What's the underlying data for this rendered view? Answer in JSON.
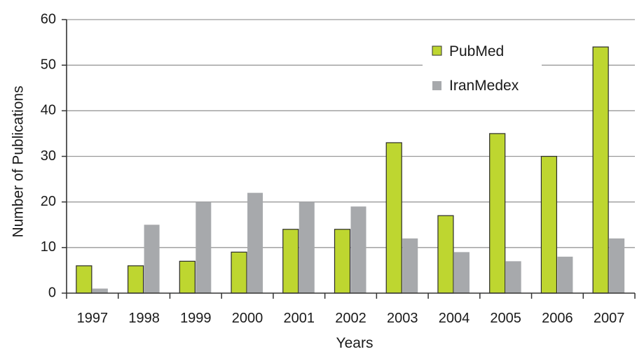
{
  "chart_data": {
    "type": "bar",
    "categories": [
      "1997",
      "1998",
      "1999",
      "2000",
      "2001",
      "2002",
      "2003",
      "2004",
      "2005",
      "2006",
      "2007"
    ],
    "series": [
      {
        "name": "PubMed",
        "color": "#bed630",
        "values": [
          6,
          6,
          7,
          9,
          14,
          14,
          33,
          17,
          35,
          30,
          54
        ]
      },
      {
        "name": "IranMedex",
        "color": "#a7a9ac",
        "values": [
          1,
          15,
          20,
          22,
          20,
          19,
          12,
          9,
          7,
          8,
          12
        ]
      }
    ],
    "title": "",
    "xlabel": "Years",
    "ylabel": "Number of Publications",
    "ylim": [
      0,
      60
    ],
    "yticks": [
      "0",
      "10",
      "20",
      "30",
      "40",
      "50",
      "60"
    ],
    "grid": true,
    "legend": "top-right"
  }
}
